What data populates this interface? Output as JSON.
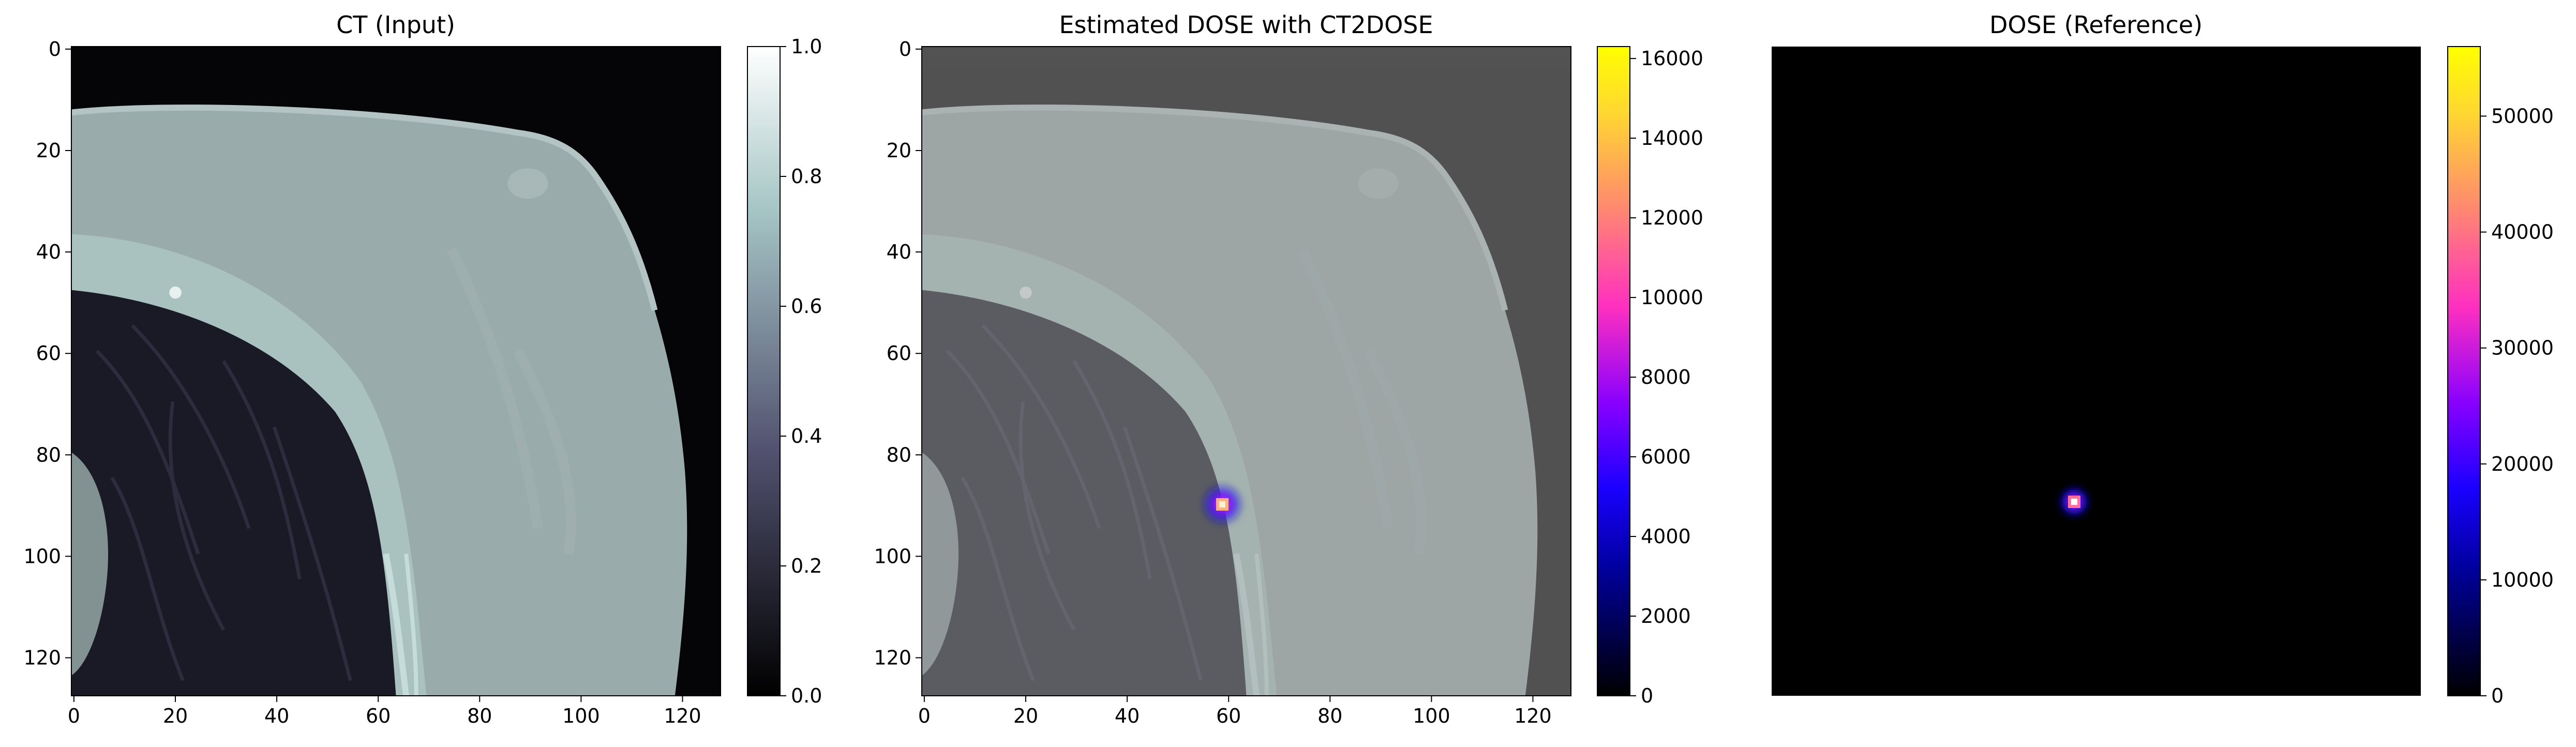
{
  "figure": {
    "panels": [
      {
        "title": "CT (Input)",
        "show_axes": true,
        "x_ticks": [
          "0",
          "20",
          "40",
          "60",
          "80",
          "100",
          "120"
        ],
        "y_ticks": [
          "0",
          "20",
          "40",
          "60",
          "80",
          "100",
          "120"
        ],
        "colorbar": {
          "colormap": "bone",
          "ticks": [
            "0.0",
            "0.2",
            "0.4",
            "0.6",
            "0.8",
            "1.0"
          ]
        }
      },
      {
        "title": "Estimated DOSE with CT2DOSE",
        "show_axes": true,
        "x_ticks": [
          "0",
          "20",
          "40",
          "60",
          "80",
          "100",
          "120"
        ],
        "y_ticks": [
          "0",
          "20",
          "40",
          "60",
          "80",
          "100",
          "120"
        ],
        "colorbar": {
          "colormap": "gnuplot2",
          "ticks": [
            "0",
            "2000",
            "4000",
            "6000",
            "8000",
            "10000",
            "12000",
            "14000",
            "16000"
          ]
        }
      },
      {
        "title": "DOSE (Reference)",
        "show_axes": false,
        "x_ticks": [],
        "y_ticks": [],
        "colorbar": {
          "colormap": "gnuplot2",
          "ticks": [
            "0",
            "10000",
            "20000",
            "30000",
            "40000",
            "50000"
          ]
        }
      }
    ]
  }
}
